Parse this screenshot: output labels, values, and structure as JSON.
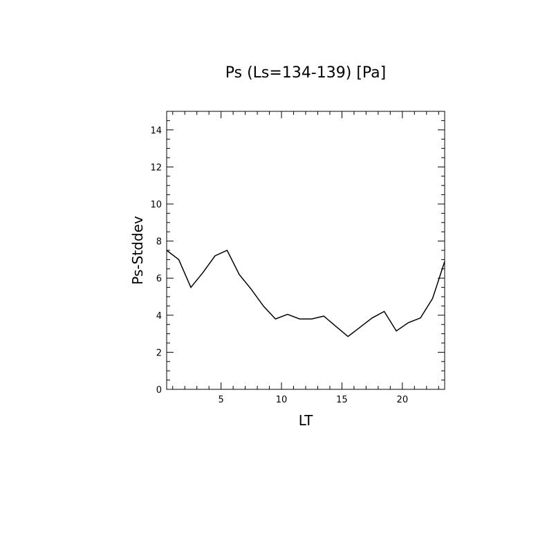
{
  "chart_data": {
    "type": "line",
    "title": "Ps (Ls=134-139) [Pa]",
    "xlabel": "LT",
    "ylabel": "Ps-Stddev",
    "xlim": [
      0.5,
      23.5
    ],
    "ylim": [
      0,
      15
    ],
    "xticks": [
      5,
      10,
      15,
      20
    ],
    "yticks": [
      0,
      2,
      4,
      6,
      8,
      10,
      12,
      14
    ],
    "grid": false,
    "series": [
      {
        "name": "",
        "x": [
          0.5,
          1.5,
          2.5,
          3.5,
          4.5,
          5.5,
          6.5,
          7.5,
          8.5,
          9.5,
          10.5,
          11.5,
          12.5,
          13.5,
          14.5,
          15.5,
          16.5,
          17.5,
          18.5,
          19.5,
          20.5,
          21.5,
          22.5,
          23.5
        ],
        "y": [
          7.5,
          7.0,
          5.5,
          6.3,
          7.2,
          7.5,
          6.2,
          5.4,
          4.5,
          3.8,
          4.05,
          3.8,
          3.8,
          3.95,
          3.4,
          2.85,
          3.35,
          3.85,
          4.2,
          3.15,
          3.6,
          3.85,
          4.9,
          6.9
        ]
      }
    ]
  }
}
